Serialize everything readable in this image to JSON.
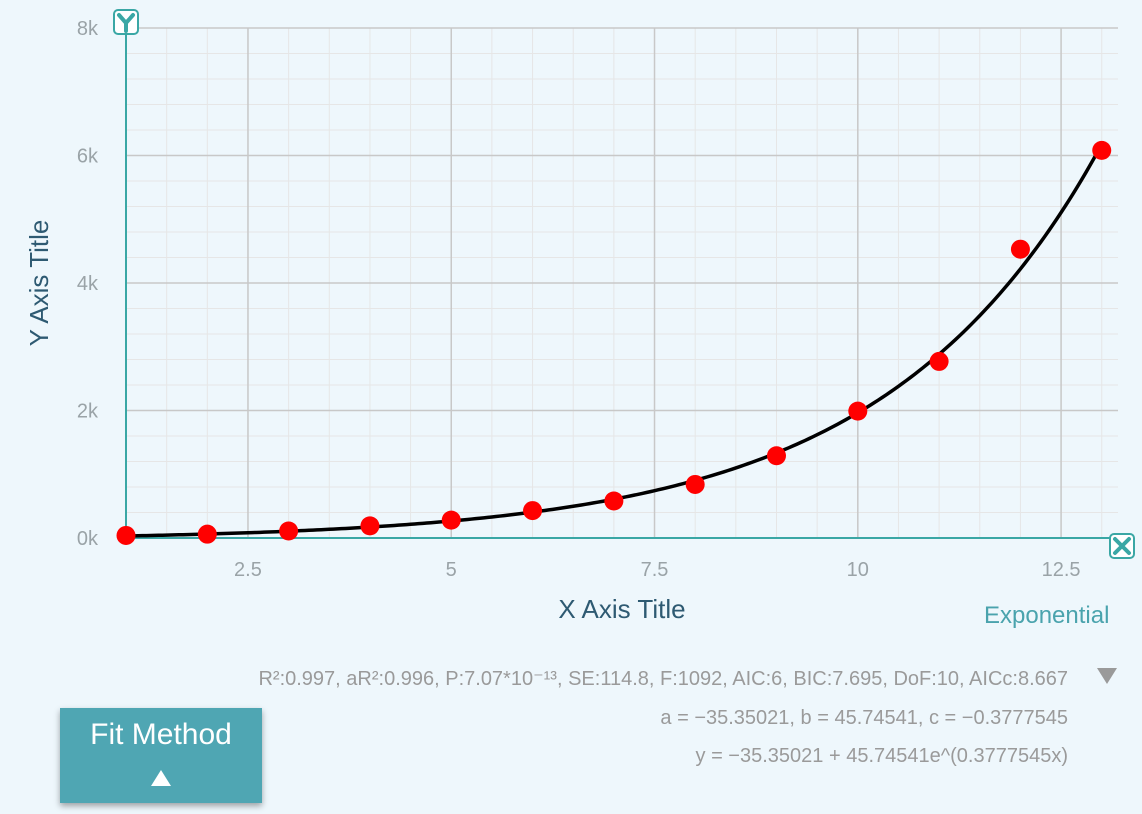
{
  "chart_data": {
    "type": "scatter",
    "xlabel": "X Axis Title",
    "ylabel": "Y Axis Title",
    "xlim": [
      1,
      13.2
    ],
    "ylim": [
      0,
      8000
    ],
    "x_ticks": [
      2.5,
      5,
      7.5,
      10,
      12.5
    ],
    "x_tick_labels": [
      "2.5",
      "5",
      "7.5",
      "10",
      "12.5"
    ],
    "y_ticks": [
      0,
      2000,
      4000,
      6000,
      8000
    ],
    "y_tick_labels": [
      "0k",
      "2k",
      "4k",
      "6k",
      "8k"
    ],
    "grid": true,
    "series": [
      {
        "type": "scatter",
        "color": "#ff0000",
        "x": [
          1,
          2,
          3,
          4,
          5,
          6,
          7,
          8,
          9,
          10,
          11,
          12,
          13
        ],
        "y": [
          40,
          60,
          110,
          190,
          280,
          430,
          580,
          840,
          1290,
          1990,
          2770,
          4530,
          6080
        ]
      },
      {
        "type": "line",
        "color": "#000000",
        "fit": {
          "model": "exponential",
          "a": -35.35021,
          "b": 45.74541,
          "c": -0.3777545
        }
      }
    ],
    "fit_name": "Exponential",
    "stats_text": "R²:0.997, aR²:0.996, P:7.07*10⁻¹³, SE:114.8, F:1092, AIC:6, BIC:7.695, DoF:10, AICc:8.667",
    "params_text": "a = −35.35021, b = 45.74541, c = −0.3777545",
    "equation_text": "y = −35.35021 + 45.74541e^(0.3777545x)"
  },
  "axis_icons": {
    "y": "y-axis-icon",
    "x": "x-axis-icon"
  },
  "controls": {
    "fit_method_label": "Fit Method",
    "fit_method_icon": "triangle-up-icon",
    "expand_icon": "triangle-down-icon"
  },
  "colors": {
    "background": "#eef7fc",
    "axis": "#3aa7a5",
    "grid_major": "#c8c8c8",
    "grid_minor": "#e6e6e6",
    "button": "#4fa6b3"
  }
}
